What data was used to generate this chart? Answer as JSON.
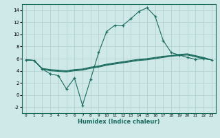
{
  "xlabel": "Humidex (Indice chaleur)",
  "x_values": [
    0,
    1,
    2,
    3,
    4,
    5,
    6,
    7,
    8,
    9,
    10,
    11,
    12,
    13,
    14,
    15,
    16,
    17,
    18,
    19,
    20,
    21,
    22,
    23
  ],
  "line_main": [
    5.8,
    5.7,
    4.3,
    3.5,
    3.2,
    1.0,
    2.8,
    -1.7,
    2.6,
    7.0,
    10.5,
    11.5,
    11.5,
    12.6,
    13.8,
    14.4,
    13.0,
    9.0,
    7.0,
    6.6,
    6.2,
    5.9,
    6.0,
    5.8
  ],
  "line_flat1": [
    5.8,
    5.7,
    4.4,
    4.2,
    4.1,
    4.0,
    4.2,
    4.3,
    4.6,
    4.8,
    5.1,
    5.3,
    5.5,
    5.7,
    5.9,
    6.0,
    6.2,
    6.4,
    6.5,
    6.7,
    6.8,
    6.5,
    6.2,
    5.8
  ],
  "line_flat2": [
    5.8,
    5.7,
    4.3,
    4.1,
    4.0,
    3.9,
    4.1,
    4.2,
    4.5,
    4.7,
    5.0,
    5.2,
    5.4,
    5.6,
    5.8,
    5.9,
    6.1,
    6.3,
    6.5,
    6.6,
    6.7,
    6.4,
    6.1,
    5.8
  ],
  "line_top": [
    5.8,
    5.7,
    4.3,
    4.0,
    3.9,
    3.8,
    4.0,
    4.1,
    4.4,
    4.6,
    4.9,
    5.1,
    5.3,
    5.5,
    5.7,
    5.8,
    6.0,
    6.2,
    6.4,
    6.5,
    6.6,
    6.3,
    6.0,
    5.8
  ],
  "ylim": [
    -3,
    15
  ],
  "yticks": [
    -2,
    0,
    2,
    4,
    6,
    8,
    10,
    12,
    14
  ],
  "bg_color": "#cfe8e8",
  "line_color": "#1a6b5e",
  "grid_color": "#aecece"
}
